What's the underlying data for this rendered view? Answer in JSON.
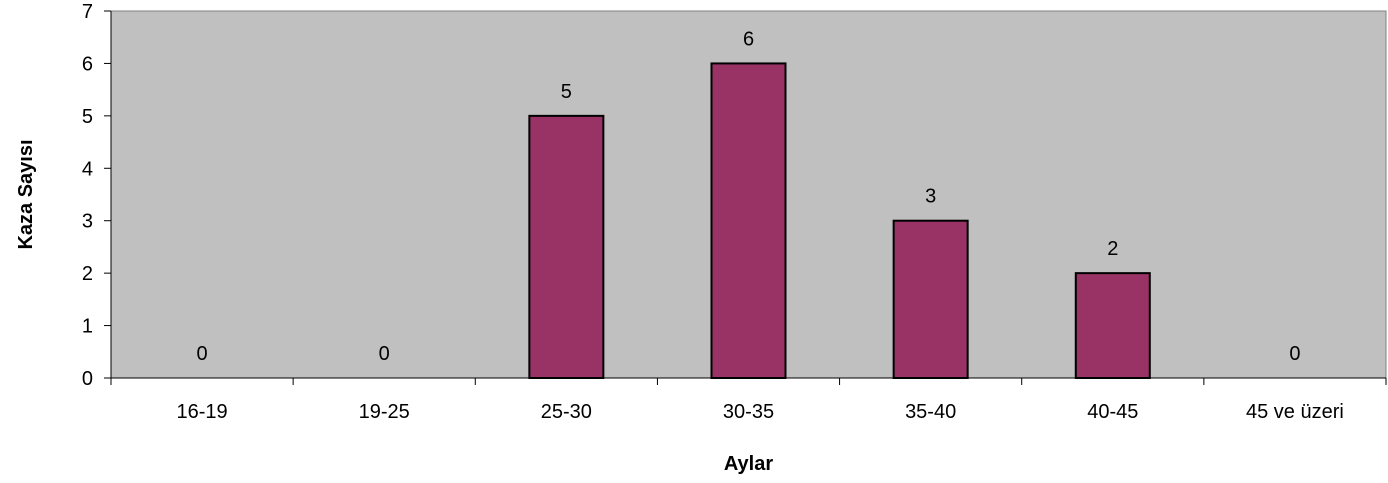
{
  "chart_data": {
    "type": "bar",
    "title": "",
    "xlabel": "Aylar",
    "ylabel": "Kaza Sayısı",
    "categories": [
      "16-19",
      "19-25",
      "25-30",
      "30-35",
      "35-40",
      "40-45",
      "45 ve üzeri"
    ],
    "values": [
      0,
      0,
      5,
      6,
      3,
      2,
      0
    ],
    "ylim": [
      0,
      7
    ],
    "yticks": [
      0,
      1,
      2,
      3,
      4,
      5,
      6,
      7
    ],
    "grid": false,
    "legend": "none",
    "data_labels": true,
    "colors": {
      "plot_background": "#c0c0c0",
      "bar_fill": "#993366",
      "bar_stroke": "#000000"
    }
  }
}
